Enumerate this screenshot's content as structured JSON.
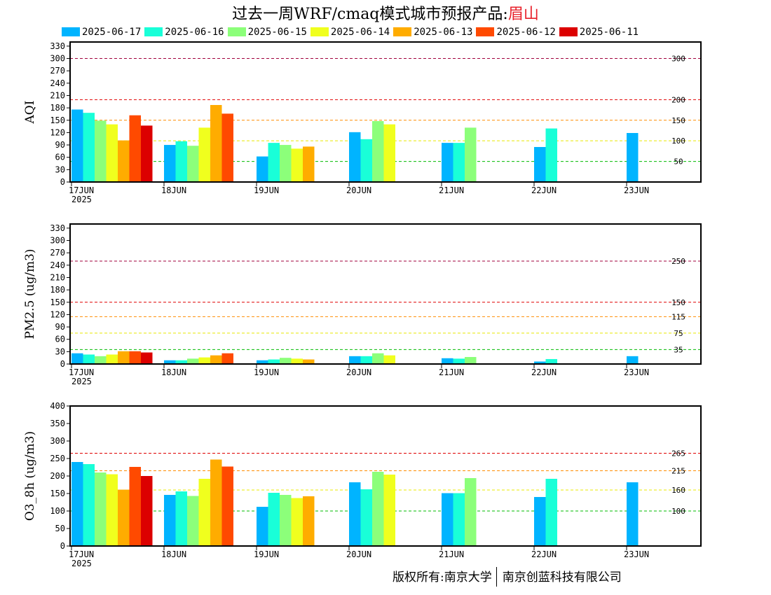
{
  "title": {
    "text": "过去一周WRF/cmaq模式城市预报产品:",
    "city": "眉山"
  },
  "legend": [
    {
      "label": "2025-06-17",
      "color": "#00b4ff"
    },
    {
      "label": "2025-06-16",
      "color": "#19ffd8"
    },
    {
      "label": "2025-06-15",
      "color": "#8cff7a"
    },
    {
      "label": "2025-06-14",
      "color": "#f0ff1e"
    },
    {
      "label": "2025-06-13",
      "color": "#ffac00"
    },
    {
      "label": "2025-06-12",
      "color": "#ff4a00"
    },
    {
      "label": "2025-06-11",
      "color": "#dc0000"
    }
  ],
  "x_categories": [
    "17JUN",
    "18JUN",
    "19JUN",
    "20JUN",
    "21JUN",
    "22JUN",
    "23JUN"
  ],
  "x_year": "2025",
  "footer": {
    "left": "版权所有:南京大学",
    "right": "南京创蓝科技有限公司"
  },
  "chart_data": [
    {
      "type": "bar",
      "ylabel": "AQI",
      "ylim": [
        0,
        340
      ],
      "yticks": [
        0,
        30,
        60,
        90,
        120,
        150,
        180,
        210,
        240,
        270,
        300,
        330
      ],
      "thresholds": [
        {
          "value": 50,
          "label": "50",
          "color": "#00bb00"
        },
        {
          "value": 100,
          "label": "100",
          "color": "#e8e800"
        },
        {
          "value": 150,
          "label": "150",
          "color": "#ff8c00"
        },
        {
          "value": 200,
          "label": "200",
          "color": "#e00000"
        },
        {
          "value": 300,
          "label": "300",
          "color": "#a0003c"
        }
      ],
      "series": [
        {
          "name": "2025-06-17",
          "values": [
            176,
            90,
            62,
            121,
            95,
            85,
            119
          ]
        },
        {
          "name": "2025-06-16",
          "values": [
            168,
            99,
            95,
            104,
            95,
            130,
            null
          ]
        },
        {
          "name": "2025-06-15",
          "values": [
            149,
            88,
            90,
            148,
            132,
            null,
            null
          ]
        },
        {
          "name": "2025-06-14",
          "values": [
            140,
            132,
            81,
            140,
            null,
            null,
            null
          ]
        },
        {
          "name": "2025-06-13",
          "values": [
            101,
            187,
            86,
            null,
            null,
            null,
            null
          ]
        },
        {
          "name": "2025-06-12",
          "values": [
            162,
            166,
            null,
            null,
            null,
            null,
            null
          ]
        },
        {
          "name": "2025-06-11",
          "values": [
            137,
            null,
            null,
            null,
            null,
            null,
            null
          ]
        }
      ]
    },
    {
      "type": "bar",
      "ylabel": "PM2.5 (ug/m3)",
      "ylim": [
        0,
        340
      ],
      "yticks": [
        0,
        30,
        60,
        90,
        120,
        150,
        180,
        210,
        240,
        270,
        300,
        330
      ],
      "thresholds": [
        {
          "value": 35,
          "label": "35",
          "color": "#00bb00"
        },
        {
          "value": 75,
          "label": "75",
          "color": "#e8e800"
        },
        {
          "value": 115,
          "label": "115",
          "color": "#ff8c00"
        },
        {
          "value": 150,
          "label": "150",
          "color": "#e00000"
        },
        {
          "value": 250,
          "label": "250",
          "color": "#a0003c"
        }
      ],
      "series": [
        {
          "name": "2025-06-17",
          "values": [
            26,
            9,
            9,
            19,
            14,
            6,
            19
          ]
        },
        {
          "name": "2025-06-16",
          "values": [
            23,
            9,
            11,
            19,
            13,
            12,
            null
          ]
        },
        {
          "name": "2025-06-15",
          "values": [
            19,
            13,
            15,
            26,
            17,
            null,
            null
          ]
        },
        {
          "name": "2025-06-14",
          "values": [
            23,
            16,
            13,
            21,
            null,
            null,
            null
          ]
        },
        {
          "name": "2025-06-13",
          "values": [
            31,
            21,
            11,
            null,
            null,
            null,
            null
          ]
        },
        {
          "name": "2025-06-12",
          "values": [
            31,
            26,
            null,
            null,
            null,
            null,
            null
          ]
        },
        {
          "name": "2025-06-11",
          "values": [
            28,
            null,
            null,
            null,
            null,
            null,
            null
          ]
        }
      ]
    },
    {
      "type": "bar",
      "ylabel": "O3_8h (ug/m3)",
      "ylim": [
        0,
        400
      ],
      "yticks": [
        0,
        50,
        100,
        150,
        200,
        250,
        300,
        350,
        400
      ],
      "thresholds": [
        {
          "value": 100,
          "label": "100",
          "color": "#00bb00"
        },
        {
          "value": 160,
          "label": "160",
          "color": "#e8e800"
        },
        {
          "value": 215,
          "label": "215",
          "color": "#ff8c00"
        },
        {
          "value": 265,
          "label": "265",
          "color": "#e00000"
        }
      ],
      "series": [
        {
          "name": "2025-06-17",
          "values": [
            240,
            146,
            112,
            182,
            151,
            140,
            182
          ]
        },
        {
          "name": "2025-06-16",
          "values": [
            234,
            156,
            152,
            162,
            151,
            192,
            null
          ]
        },
        {
          "name": "2025-06-15",
          "values": [
            210,
            143,
            146,
            212,
            194,
            null,
            null
          ]
        },
        {
          "name": "2025-06-14",
          "values": [
            205,
            192,
            137,
            204,
            null,
            null,
            null
          ]
        },
        {
          "name": "2025-06-13",
          "values": [
            161,
            247,
            142,
            null,
            null,
            null,
            null
          ]
        },
        {
          "name": "2025-06-12",
          "values": [
            226,
            227,
            null,
            null,
            null,
            null,
            null
          ]
        },
        {
          "name": "2025-06-11",
          "values": [
            200,
            null,
            null,
            null,
            null,
            null,
            null
          ]
        }
      ]
    }
  ]
}
